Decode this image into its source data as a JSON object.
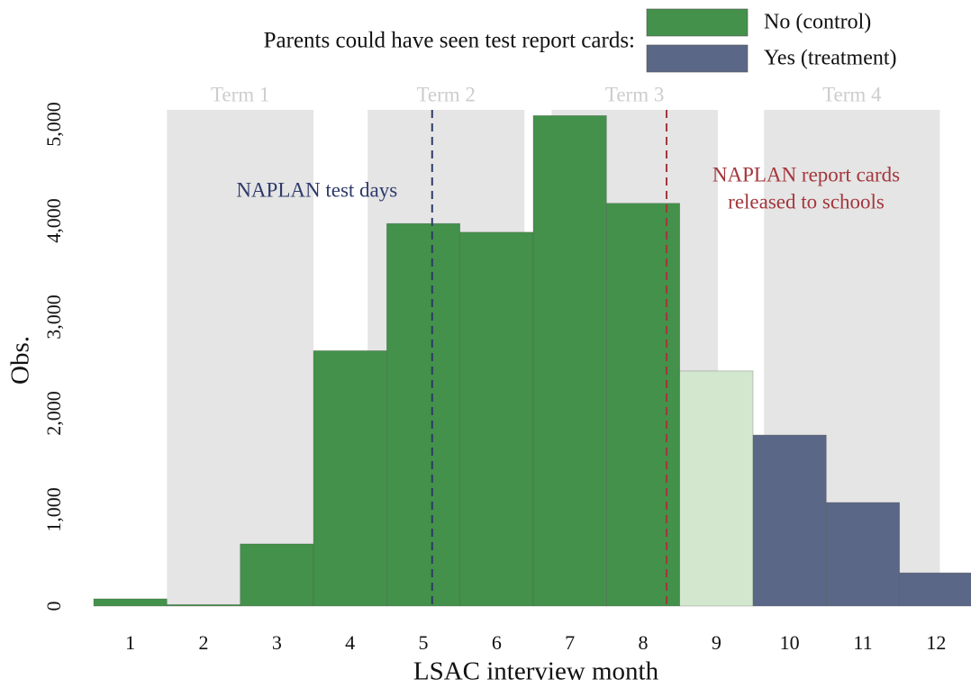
{
  "chart_data": {
    "type": "bar",
    "x_label": "LSAC interview month",
    "y_label": "Obs.",
    "x": [
      1,
      2,
      3,
      4,
      5,
      6,
      7,
      8,
      9,
      10,
      11,
      12
    ],
    "values": [
      75,
      15,
      645,
      2650,
      3970,
      3880,
      5090,
      4180,
      2440,
      1775,
      1075,
      345
    ],
    "colors": [
      "#43914a",
      "#43914a",
      "#43914a",
      "#43914a",
      "#43914a",
      "#43914a",
      "#43914a",
      "#43914a",
      "#d3e7cf",
      "#5b6786",
      "#5b6786",
      "#5b6786"
    ],
    "xlim": [
      0.5,
      12.5
    ],
    "xticks": [
      1,
      2,
      3,
      4,
      5,
      6,
      7,
      8,
      9,
      10,
      11,
      12
    ],
    "ylim": [
      0,
      5400
    ],
    "yticks": [
      0,
      {
        "value": 1000,
        "label": "1,000"
      },
      {
        "value": 2000,
        "label": "2,000"
      },
      {
        "value": 3000,
        "label": "3,000"
      },
      {
        "value": 4000,
        "label": "4,000"
      },
      {
        "value": 5000,
        "label": "5,000"
      }
    ],
    "legend_title": "Parents could have seen test report cards:",
    "legend": [
      {
        "name": "No (control)",
        "color": "#43914a"
      },
      {
        "name": "Yes (treatment)",
        "color": "#5b6786"
      }
    ],
    "terms": [
      {
        "label": "Term 1",
        "start": 1.5,
        "end": 3.5
      },
      {
        "label": "Term 2",
        "start": 4.24,
        "end": 6.38
      },
      {
        "label": "Term 3",
        "start": 6.75,
        "end": 9.02
      },
      {
        "label": "Term 4",
        "start": 9.65,
        "end": 12.05
      }
    ],
    "events": [
      {
        "x": 5.12,
        "color": "#2e3a6a",
        "lines": [
          "NAPLAN test days"
        ],
        "side": "left"
      },
      {
        "x": 8.32,
        "color": "#a3363c",
        "lines": [
          "NAPLAN report cards",
          "released to schools"
        ],
        "side": "right"
      }
    ]
  }
}
